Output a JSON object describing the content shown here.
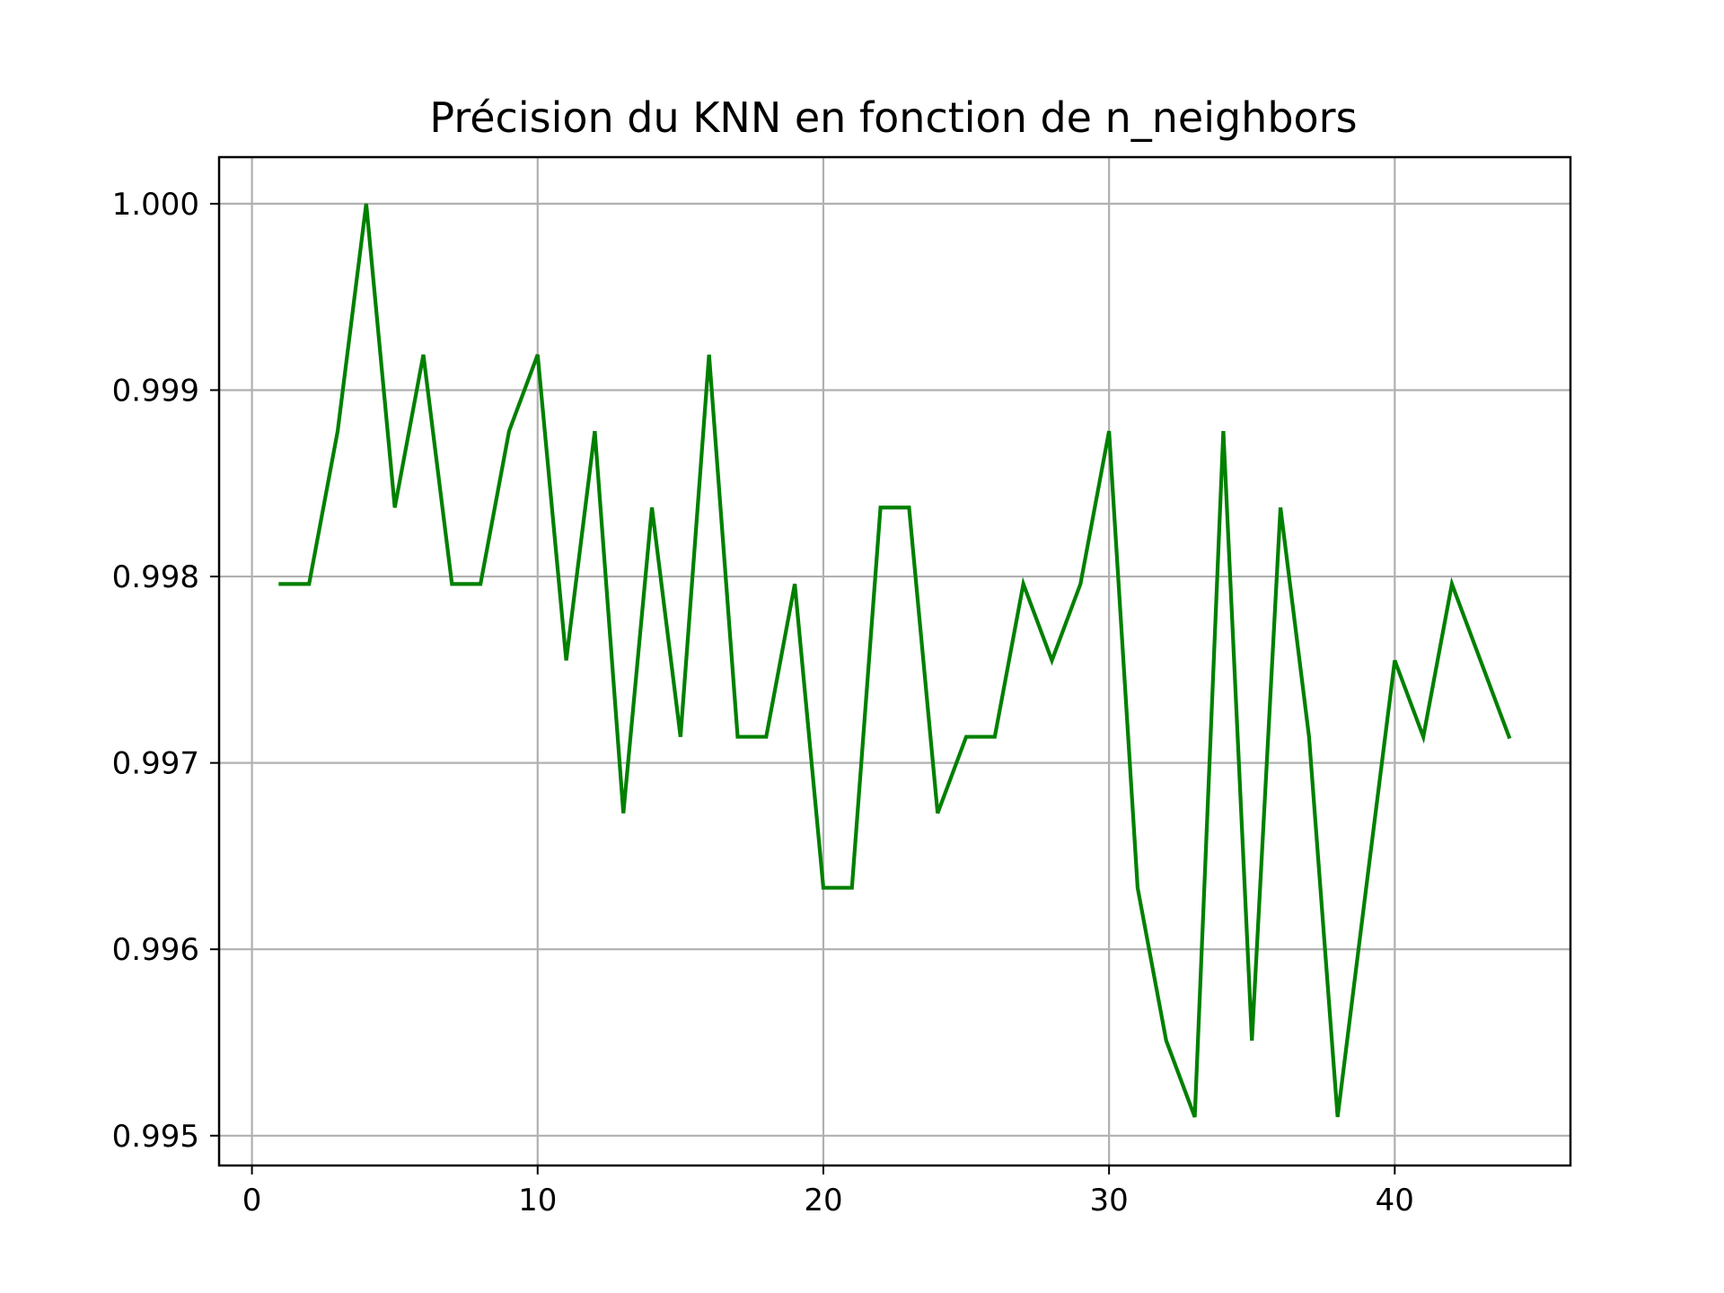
{
  "chart_data": {
    "type": "line",
    "title": "Précision du KNN en fonction de n_neighbors",
    "xlabel": "",
    "ylabel": "",
    "xlim": [
      -1.15,
      46.15
    ],
    "ylim": [
      0.99484,
      1.00025
    ],
    "xticks": [
      0,
      10,
      20,
      30,
      40
    ],
    "xtick_labels": [
      "0",
      "10",
      "20",
      "30",
      "40"
    ],
    "yticks": [
      0.995,
      0.996,
      0.997,
      0.998,
      0.999,
      1.0
    ],
    "ytick_labels": [
      "0.995",
      "0.996",
      "0.997",
      "0.998",
      "0.999",
      "1.000"
    ],
    "grid": true,
    "legend": "none",
    "series": [
      {
        "color": "#008000",
        "x": [
          1,
          2,
          3,
          4,
          5,
          6,
          7,
          8,
          9,
          10,
          11,
          12,
          13,
          14,
          15,
          16,
          17,
          18,
          19,
          20,
          21,
          22,
          23,
          24,
          25,
          26,
          27,
          28,
          29,
          30,
          31,
          32,
          33,
          34,
          35,
          36,
          37,
          38,
          39,
          40,
          41,
          42,
          43,
          44
        ],
        "y": [
          0.99796,
          0.99796,
          0.99878,
          1.0,
          0.99837,
          0.99919,
          0.99796,
          0.99796,
          0.99878,
          0.99919,
          0.99755,
          0.99878,
          0.99673,
          0.99837,
          0.99714,
          0.99919,
          0.99714,
          0.99714,
          0.99796,
          0.99633,
          0.99633,
          0.99837,
          0.99837,
          0.99673,
          0.99714,
          0.99714,
          0.99796,
          0.99755,
          0.99796,
          0.99878,
          0.99633,
          0.99551,
          0.9951,
          0.99878,
          0.99551,
          0.99837,
          0.99714,
          0.9951,
          0.99633,
          0.99755,
          0.99714,
          0.99796,
          0.99755,
          0.99714
        ]
      }
    ]
  }
}
